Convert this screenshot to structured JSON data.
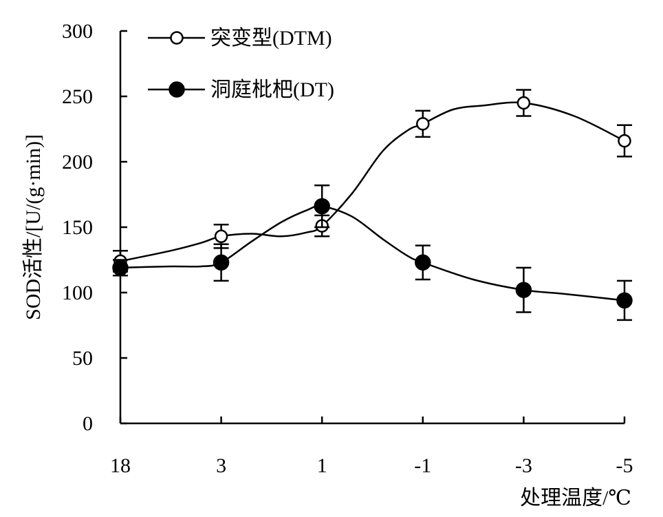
{
  "chart_data": {
    "type": "line",
    "categories": [
      "18",
      "3",
      "1",
      "-1",
      "-3",
      "-5"
    ],
    "xlabel": "处理温度/℃",
    "ylabel": "SOD活性/[U/(g·min)]",
    "ylim": [
      0,
      300
    ],
    "yticks": [
      0,
      50,
      100,
      150,
      200,
      250,
      300
    ],
    "grid": false,
    "legend_position": "top-left",
    "series": [
      {
        "name": "突变型(DTM)",
        "marker": "open-circle",
        "values": [
          124,
          143,
          151,
          229,
          245,
          216
        ],
        "errors": [
          8,
          9,
          8,
          10,
          10,
          12
        ],
        "curve": [
          [
            0,
            124
          ],
          [
            0.5,
            132
          ],
          [
            0.8,
            138
          ],
          [
            1,
            143
          ],
          [
            1.3,
            145
          ],
          [
            1.6,
            143
          ],
          [
            1.85,
            146
          ],
          [
            2,
            151
          ],
          [
            2.3,
            176
          ],
          [
            2.6,
            208
          ],
          [
            2.85,
            224
          ],
          [
            3,
            229
          ],
          [
            3.3,
            240
          ],
          [
            3.6,
            243
          ],
          [
            4,
            245
          ],
          [
            4.5,
            235
          ],
          [
            5,
            216
          ]
        ]
      },
      {
        "name": "洞庭枇杷(DT)",
        "marker": "filled-circle",
        "values": [
          119,
          123,
          166,
          123,
          102,
          94
        ],
        "errors": [
          6,
          14,
          16,
          13,
          17,
          15
        ],
        "curve": [
          [
            0,
            119
          ],
          [
            0.5,
            120
          ],
          [
            0.8,
            120
          ],
          [
            1,
            123
          ],
          [
            1.3,
            139
          ],
          [
            1.6,
            154
          ],
          [
            1.85,
            163
          ],
          [
            2,
            166
          ],
          [
            2.3,
            158
          ],
          [
            2.6,
            141
          ],
          [
            2.85,
            128
          ],
          [
            3,
            123
          ],
          [
            3.5,
            110
          ],
          [
            4,
            102
          ],
          [
            4.4,
            99
          ],
          [
            5,
            94
          ]
        ]
      }
    ]
  }
}
